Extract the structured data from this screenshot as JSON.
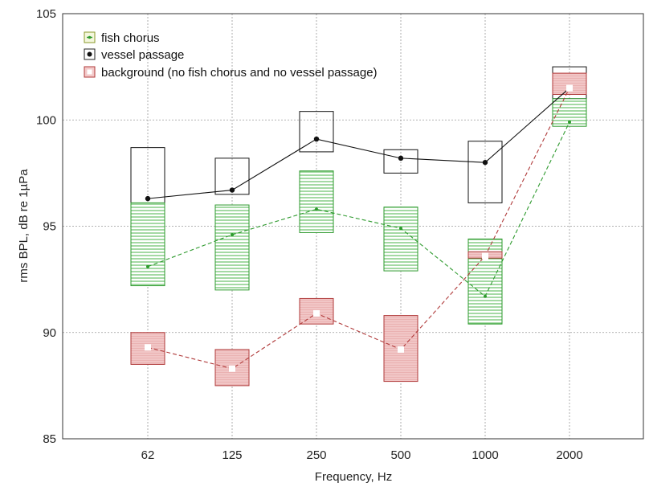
{
  "chart_data": {
    "type": "box",
    "xlabel": "Frequency, Hz",
    "ylabel": "rms BPL, dB re 1µPa",
    "ylim": [
      85,
      105
    ],
    "yticks": [
      85,
      90,
      95,
      100,
      105
    ],
    "grid": true,
    "legend_position": "top-left",
    "categories": [
      "62",
      "125",
      "250",
      "500",
      "1000",
      "2000"
    ],
    "series": [
      {
        "name": "fish chorus",
        "color": "#2e9a2e",
        "line_style": "dashed",
        "marker": "small-dot",
        "fill": "hatched",
        "means": [
          93.1,
          94.6,
          95.8,
          94.9,
          91.7,
          99.9
        ],
        "box_low": [
          92.2,
          92.0,
          94.7,
          92.9,
          90.4,
          99.7
        ],
        "box_high": [
          96.1,
          96.0,
          97.6,
          95.9,
          94.4,
          101.0
        ]
      },
      {
        "name": "vessel passage",
        "color": "#111111",
        "line_style": "solid",
        "marker": "black-dot",
        "fill": "none",
        "means": [
          96.3,
          96.7,
          99.1,
          98.2,
          98.0,
          101.5
        ],
        "box_low": [
          95.4,
          96.5,
          98.5,
          97.5,
          96.1,
          101.0
        ],
        "box_high": [
          98.7,
          98.2,
          100.4,
          98.6,
          99.0,
          102.5
        ]
      },
      {
        "name": "background (no fish chorus and no vessel passage)",
        "color": "#b03a3a",
        "line_style": "dashed",
        "marker": "white-square",
        "fill": "pink",
        "means": [
          89.3,
          88.3,
          90.9,
          89.2,
          93.6,
          101.5
        ],
        "box_low": [
          88.5,
          87.5,
          90.4,
          87.7,
          93.5,
          101.2
        ],
        "box_high": [
          90.0,
          89.2,
          91.6,
          90.8,
          93.8,
          102.2
        ]
      }
    ]
  }
}
